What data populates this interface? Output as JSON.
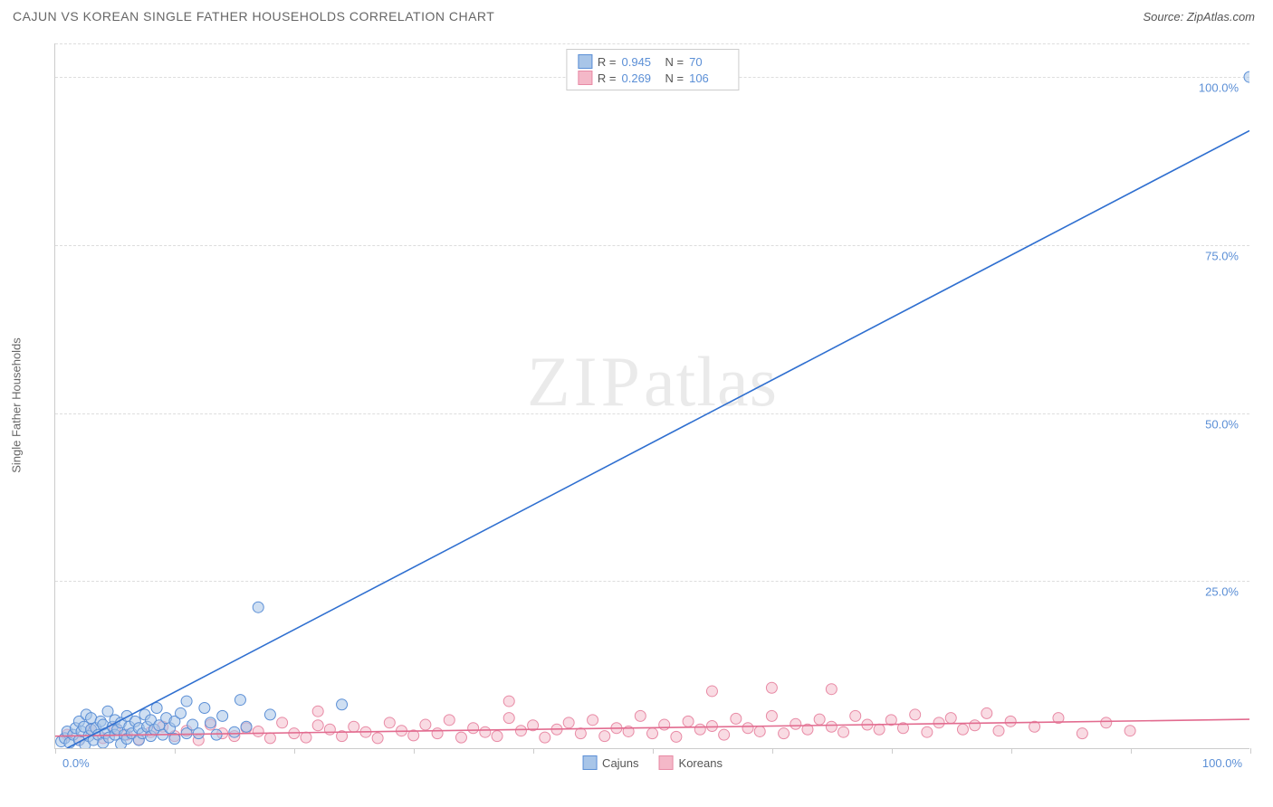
{
  "header": {
    "title": "CAJUN VS KOREAN SINGLE FATHER HOUSEHOLDS CORRELATION CHART",
    "source": "Source: ZipAtlas.com"
  },
  "chart": {
    "type": "scatter",
    "y_axis_label": "Single Father Households",
    "xlim": [
      0,
      100
    ],
    "ylim": [
      0,
      105
    ],
    "x_tick_positions": [
      0,
      10,
      20,
      30,
      40,
      50,
      60,
      70,
      80,
      90,
      100
    ],
    "x_tick_labels": {
      "min": "0.0%",
      "max": "100.0%"
    },
    "y_ticks": [
      {
        "value": 25,
        "label": "25.0%"
      },
      {
        "value": 50,
        "label": "50.0%"
      },
      {
        "value": 75,
        "label": "75.0%"
      },
      {
        "value": 100,
        "label": "100.0%"
      },
      {
        "value": 105,
        "label": ""
      }
    ],
    "grid_color": "#dddddd",
    "axis_color": "#cccccc",
    "background_color": "#ffffff",
    "tick_label_color": "#5b8fd6",
    "axis_label_color": "#666666",
    "watermark": "ZIPatlas",
    "series": [
      {
        "name": "Cajuns",
        "color_fill": "#a8c5e8",
        "color_stroke": "#5b8fd6",
        "trend_color": "#2f6fd0",
        "marker_radius": 6,
        "marker_opacity": 0.55,
        "R": "0.945",
        "N": "70",
        "trend": {
          "x1": 1,
          "y1": 0,
          "x2": 100,
          "y2": 92
        },
        "points": [
          [
            0.5,
            1
          ],
          [
            0.8,
            1.5
          ],
          [
            1,
            2.5
          ],
          [
            1.2,
            0.8
          ],
          [
            1.5,
            2
          ],
          [
            1.7,
            3
          ],
          [
            2,
            1.2
          ],
          [
            2,
            4
          ],
          [
            2.2,
            2.5
          ],
          [
            2.4,
            3.2
          ],
          [
            2.5,
            0.5
          ],
          [
            2.6,
            5
          ],
          [
            2.8,
            1.8
          ],
          [
            3,
            2.8
          ],
          [
            3,
            4.5
          ],
          [
            3.2,
            1.2
          ],
          [
            3.4,
            3
          ],
          [
            3.6,
            2
          ],
          [
            3.8,
            4
          ],
          [
            4,
            0.8
          ],
          [
            4,
            3.5
          ],
          [
            4.2,
            2.2
          ],
          [
            4.4,
            5.5
          ],
          [
            4.5,
            1.6
          ],
          [
            4.8,
            3.2
          ],
          [
            5,
            2
          ],
          [
            5,
            4.2
          ],
          [
            5.2,
            2.8
          ],
          [
            5.5,
            0.6
          ],
          [
            5.5,
            3.8
          ],
          [
            5.8,
            2
          ],
          [
            6,
            1.4
          ],
          [
            6,
            4.8
          ],
          [
            6.2,
            3.2
          ],
          [
            6.4,
            2.2
          ],
          [
            6.7,
            4
          ],
          [
            7,
            1.2
          ],
          [
            7,
            3
          ],
          [
            7.3,
            2.2
          ],
          [
            7.5,
            5
          ],
          [
            7.7,
            3.2
          ],
          [
            8,
            1.8
          ],
          [
            8,
            4.2
          ],
          [
            8.3,
            2.8
          ],
          [
            8.5,
            6
          ],
          [
            8.7,
            3.4
          ],
          [
            9,
            2
          ],
          [
            9.3,
            4.5
          ],
          [
            9.6,
            3
          ],
          [
            10,
            4
          ],
          [
            10,
            1.4
          ],
          [
            10.5,
            5.2
          ],
          [
            11,
            2.2
          ],
          [
            11,
            7
          ],
          [
            11.5,
            3.5
          ],
          [
            12,
            2.2
          ],
          [
            12.5,
            6
          ],
          [
            13,
            3.8
          ],
          [
            13.5,
            2
          ],
          [
            14,
            4.8
          ],
          [
            15,
            2.4
          ],
          [
            15.5,
            7.2
          ],
          [
            16,
            3.2
          ],
          [
            18,
            5
          ],
          [
            17,
            21
          ],
          [
            24,
            6.5
          ],
          [
            100,
            100
          ]
        ]
      },
      {
        "name": "Koreans",
        "color_fill": "#f4b8c8",
        "color_stroke": "#e88aa5",
        "trend_color": "#e26b8f",
        "marker_radius": 6,
        "marker_opacity": 0.5,
        "R": "0.269",
        "N": "106",
        "trend": {
          "x1": 0,
          "y1": 1.8,
          "x2": 100,
          "y2": 4.3
        },
        "points": [
          [
            1,
            2
          ],
          [
            2,
            1.2
          ],
          [
            3,
            2.8
          ],
          [
            4,
            1.5
          ],
          [
            5,
            3
          ],
          [
            6,
            2
          ],
          [
            7,
            1.3
          ],
          [
            8,
            2.4
          ],
          [
            9,
            3.2
          ],
          [
            10,
            1.8
          ],
          [
            11,
            2.6
          ],
          [
            12,
            1.2
          ],
          [
            13,
            3.5
          ],
          [
            14,
            2.2
          ],
          [
            15,
            1.8
          ],
          [
            16,
            3
          ],
          [
            17,
            2.5
          ],
          [
            18,
            1.5
          ],
          [
            19,
            3.8
          ],
          [
            20,
            2.2
          ],
          [
            21,
            1.6
          ],
          [
            22,
            3.4
          ],
          [
            22,
            5.5
          ],
          [
            23,
            2.8
          ],
          [
            24,
            1.8
          ],
          [
            25,
            3.2
          ],
          [
            26,
            2.4
          ],
          [
            27,
            1.5
          ],
          [
            28,
            3.8
          ],
          [
            29,
            2.6
          ],
          [
            30,
            1.9
          ],
          [
            31,
            3.5
          ],
          [
            32,
            2.2
          ],
          [
            33,
            4.2
          ],
          [
            34,
            1.6
          ],
          [
            35,
            3
          ],
          [
            36,
            2.4
          ],
          [
            37,
            1.8
          ],
          [
            38,
            4.5
          ],
          [
            38,
            7
          ],
          [
            39,
            2.6
          ],
          [
            40,
            3.4
          ],
          [
            41,
            1.6
          ],
          [
            42,
            2.8
          ],
          [
            43,
            3.8
          ],
          [
            44,
            2.2
          ],
          [
            45,
            4.2
          ],
          [
            46,
            1.8
          ],
          [
            47,
            3
          ],
          [
            48,
            2.5
          ],
          [
            49,
            4.8
          ],
          [
            50,
            2.2
          ],
          [
            51,
            3.5
          ],
          [
            52,
            1.7
          ],
          [
            53,
            4
          ],
          [
            54,
            2.8
          ],
          [
            55,
            3.3
          ],
          [
            55,
            8.5
          ],
          [
            56,
            2
          ],
          [
            57,
            4.4
          ],
          [
            58,
            3
          ],
          [
            59,
            2.5
          ],
          [
            60,
            4.8
          ],
          [
            60,
            9
          ],
          [
            61,
            2.2
          ],
          [
            62,
            3.6
          ],
          [
            63,
            2.8
          ],
          [
            64,
            4.3
          ],
          [
            65,
            3.2
          ],
          [
            65,
            8.8
          ],
          [
            66,
            2.4
          ],
          [
            67,
            4.8
          ],
          [
            68,
            3.5
          ],
          [
            69,
            2.8
          ],
          [
            70,
            4.2
          ],
          [
            71,
            3
          ],
          [
            72,
            5
          ],
          [
            73,
            2.4
          ],
          [
            74,
            3.8
          ],
          [
            75,
            4.5
          ],
          [
            76,
            2.8
          ],
          [
            77,
            3.4
          ],
          [
            78,
            5.2
          ],
          [
            79,
            2.6
          ],
          [
            80,
            4
          ],
          [
            82,
            3.2
          ],
          [
            84,
            4.5
          ],
          [
            86,
            2.2
          ],
          [
            88,
            3.8
          ],
          [
            90,
            2.6
          ]
        ]
      }
    ],
    "legend_top_labels": {
      "R": "R =",
      "N": "N ="
    },
    "legend_bottom": [
      {
        "label": "Cajuns"
      },
      {
        "label": "Koreans"
      }
    ]
  }
}
